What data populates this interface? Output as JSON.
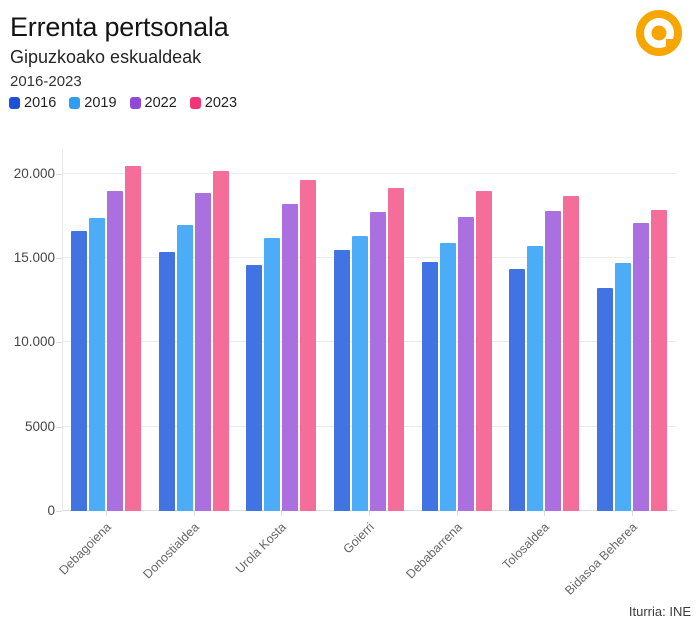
{
  "header": {
    "title": "Errenta pertsonala",
    "subtitle": "Gipuzkoako eskualdeak",
    "period": "2016-2023"
  },
  "logo": {
    "name": "orange-a-ring-logo",
    "color": "#F7A600"
  },
  "chart_data": {
    "type": "bar",
    "title": "Errenta pertsonala",
    "subtitle": "Gipuzkoako eskualdeak",
    "period": "2016-2023",
    "grid": true,
    "legend_position": "top",
    "categories": [
      "Debagoiena",
      "Donostialdea",
      "Urola Kosta",
      "Goierri",
      "Debabarrena",
      "Tolosaldea",
      "Bidasoa Beherea"
    ],
    "series": [
      {
        "name": "2016",
        "color": "#1D4FD7",
        "bar_color": "#4273E2",
        "values": [
          16600,
          15400,
          14600,
          15500,
          14750,
          14350,
          13250
        ]
      },
      {
        "name": "2019",
        "color": "#2E9DF3",
        "bar_color": "#4CACF7",
        "values": [
          17400,
          16950,
          16200,
          16350,
          15900,
          15750,
          14700
        ]
      },
      {
        "name": "2022",
        "color": "#9149D9",
        "bar_color": "#AB70DF",
        "values": [
          19000,
          18900,
          18200,
          17750,
          17450,
          17800,
          17100
        ]
      },
      {
        "name": "2023",
        "color": "#F23579",
        "bar_color": "#F56D99",
        "values": [
          20500,
          20200,
          19650,
          19150,
          19000,
          18700,
          17850
        ]
      }
    ],
    "y_axis": {
      "max": 21400,
      "ticks": [
        {
          "value": 0,
          "label": "0"
        },
        {
          "value": 5000,
          "label": "5000"
        },
        {
          "value": 10000,
          "label": "10.000"
        },
        {
          "value": 15000,
          "label": "15.000"
        },
        {
          "value": 20000,
          "label": "20.000"
        }
      ]
    },
    "x_axis": {
      "label": ""
    }
  },
  "footer": {
    "source": "Iturria: INE"
  }
}
